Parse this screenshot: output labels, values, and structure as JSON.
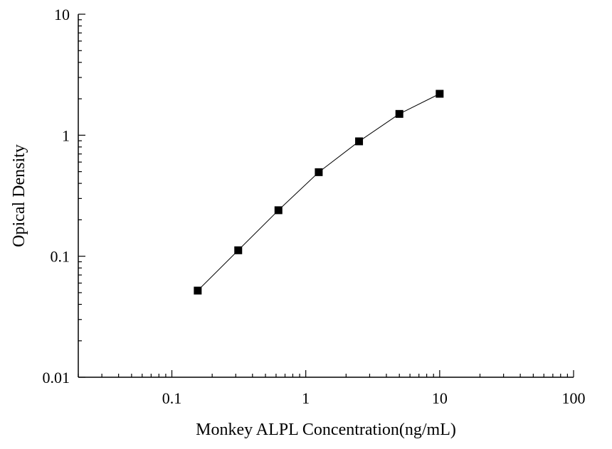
{
  "chart_data": {
    "type": "scatter",
    "xscale": "log",
    "yscale": "log",
    "xlabel": "Monkey ALPL Concentration(ng/mL)",
    "ylabel": "Opical Density",
    "xlim": [
      0.02,
      100
    ],
    "ylim": [
      0.01,
      10
    ],
    "x_ticks": [
      {
        "value": 0.1,
        "label": "0.1"
      },
      {
        "value": 1,
        "label": "1"
      },
      {
        "value": 10,
        "label": "10"
      },
      {
        "value": 100,
        "label": "100"
      }
    ],
    "y_ticks": [
      {
        "value": 0.01,
        "label": "0.01"
      },
      {
        "value": 0.1,
        "label": "0.1"
      },
      {
        "value": 1,
        "label": "1"
      },
      {
        "value": 10,
        "label": "10"
      }
    ],
    "grid": false,
    "connected": true,
    "marker": "square",
    "series": [
      {
        "x": [
          0.156,
          0.313,
          0.625,
          1.25,
          2.5,
          5,
          10
        ],
        "y": [
          0.052,
          0.112,
          0.24,
          0.495,
          0.89,
          1.5,
          2.2
        ]
      }
    ]
  }
}
